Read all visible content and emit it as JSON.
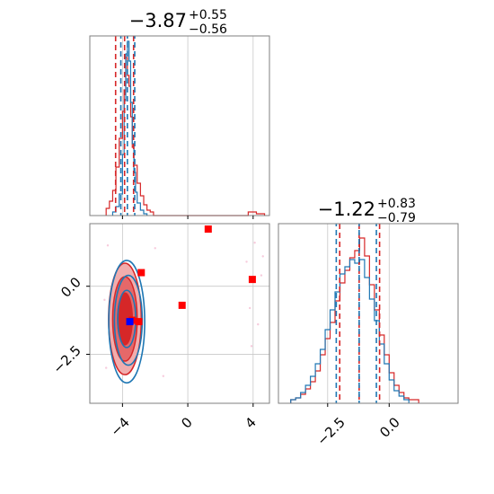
{
  "chart_data": {
    "type": "corner",
    "parameters": [
      "",
      ""
    ],
    "colors": {
      "posterior_a": "#d62728",
      "posterior_b": "#1f77b4",
      "grid": "#c8c8c8",
      "frame": "#7f7f7f",
      "marker_red": "#ff0000",
      "marker_blue": "#0000ff"
    },
    "panels": [
      {
        "id": "hist_p1",
        "type": "histogram",
        "title": {
          "main": "−3.87",
          "sup": "+0.55",
          "sub": "−0.56"
        },
        "xlim": [
          -6.0,
          5.0
        ],
        "ylim": [
          0,
          1
        ],
        "grid_x": [
          -4,
          0,
          4
        ],
        "quantile_lines": {
          "red": [
            -4.42,
            -3.87,
            -3.32
          ],
          "blue": [
            -4.1,
            -3.7,
            -3.25
          ]
        },
        "series": [
          {
            "name": "",
            "color": "#d62728",
            "bins": [
              {
                "x0": -5.0,
                "x1": -4.8,
                "h": 0.04
              },
              {
                "x0": -4.8,
                "x1": -4.6,
                "h": 0.08
              },
              {
                "x0": -4.6,
                "x1": -4.4,
                "h": 0.14
              },
              {
                "x0": -4.4,
                "x1": -4.2,
                "h": 0.27
              },
              {
                "x0": -4.2,
                "x1": -4.0,
                "h": 0.43
              },
              {
                "x0": -4.0,
                "x1": -3.9,
                "h": 0.58
              },
              {
                "x0": -3.9,
                "x1": -3.8,
                "h": 0.7
              },
              {
                "x0": -3.8,
                "x1": -3.7,
                "h": 0.88
              },
              {
                "x0": -3.7,
                "x1": -3.6,
                "h": 0.78
              },
              {
                "x0": -3.6,
                "x1": -3.5,
                "h": 0.72
              },
              {
                "x0": -3.5,
                "x1": -3.4,
                "h": 0.55
              },
              {
                "x0": -3.4,
                "x1": -3.3,
                "h": 0.38
              },
              {
                "x0": -3.3,
                "x1": -3.1,
                "h": 0.28
              },
              {
                "x0": -3.1,
                "x1": -2.9,
                "h": 0.18
              },
              {
                "x0": -2.9,
                "x1": -2.7,
                "h": 0.11
              },
              {
                "x0": -2.7,
                "x1": -2.5,
                "h": 0.06
              },
              {
                "x0": -2.5,
                "x1": -2.3,
                "h": 0.03
              },
              {
                "x0": -2.3,
                "x1": -2.1,
                "h": 0.02
              },
              {
                "x0": 3.7,
                "x1": 4.2,
                "h": 0.02
              },
              {
                "x0": 4.2,
                "x1": 4.7,
                "h": 0.01
              }
            ]
          },
          {
            "name": "",
            "color": "#1f77b4",
            "bins": [
              {
                "x0": -4.6,
                "x1": -4.4,
                "h": 0.02
              },
              {
                "x0": -4.4,
                "x1": -4.2,
                "h": 0.05
              },
              {
                "x0": -4.2,
                "x1": -4.0,
                "h": 0.12
              },
              {
                "x0": -4.0,
                "x1": -3.9,
                "h": 0.34
              },
              {
                "x0": -3.9,
                "x1": -3.8,
                "h": 0.64
              },
              {
                "x0": -3.8,
                "x1": -3.7,
                "h": 0.9
              },
              {
                "x0": -3.7,
                "x1": -3.6,
                "h": 0.97
              },
              {
                "x0": -3.6,
                "x1": -3.5,
                "h": 0.86
              },
              {
                "x0": -3.5,
                "x1": -3.4,
                "h": 0.63
              },
              {
                "x0": -3.4,
                "x1": -3.3,
                "h": 0.4
              },
              {
                "x0": -3.3,
                "x1": -3.2,
                "h": 0.24
              },
              {
                "x0": -3.2,
                "x1": -3.1,
                "h": 0.13
              },
              {
                "x0": -3.1,
                "x1": -2.9,
                "h": 0.07
              },
              {
                "x0": -2.9,
                "x1": -2.7,
                "h": 0.03
              },
              {
                "x0": -2.7,
                "x1": -2.5,
                "h": 0.01
              }
            ]
          }
        ]
      },
      {
        "id": "hist_p2",
        "type": "histogram",
        "title": {
          "main": "−1.22",
          "sup": "+0.83",
          "sub": "−0.79"
        },
        "xlim": [
          -4.5,
          2.8
        ],
        "ylim": [
          0,
          1
        ],
        "grid_x": [
          -2.5,
          0.0
        ],
        "xticks": [
          "−2.5",
          "0.0"
        ],
        "quantile_lines": {
          "red": [
            -2.01,
            -1.22,
            -0.39
          ],
          "blue": [
            -2.15,
            -1.22,
            -0.52
          ]
        },
        "series": [
          {
            "name": "",
            "color": "#d62728",
            "bins": [
              {
                "x0": -4.0,
                "x1": -3.8,
                "h": 0.02
              },
              {
                "x0": -3.8,
                "x1": -3.6,
                "h": 0.03
              },
              {
                "x0": -3.6,
                "x1": -3.4,
                "h": 0.05
              },
              {
                "x0": -3.4,
                "x1": -3.2,
                "h": 0.08
              },
              {
                "x0": -3.2,
                "x1": -3.0,
                "h": 0.12
              },
              {
                "x0": -3.0,
                "x1": -2.8,
                "h": 0.18
              },
              {
                "x0": -2.8,
                "x1": -2.6,
                "h": 0.27
              },
              {
                "x0": -2.6,
                "x1": -2.4,
                "h": 0.36
              },
              {
                "x0": -2.4,
                "x1": -2.2,
                "h": 0.45
              },
              {
                "x0": -2.2,
                "x1": -2.0,
                "h": 0.57
              },
              {
                "x0": -2.0,
                "x1": -1.8,
                "h": 0.67
              },
              {
                "x0": -1.8,
                "x1": -1.6,
                "h": 0.74
              },
              {
                "x0": -1.6,
                "x1": -1.4,
                "h": 0.81
              },
              {
                "x0": -1.4,
                "x1": -1.2,
                "h": 0.85
              },
              {
                "x0": -1.2,
                "x1": -1.0,
                "h": 0.92
              },
              {
                "x0": -1.0,
                "x1": -0.8,
                "h": 0.82
              },
              {
                "x0": -0.8,
                "x1": -0.6,
                "h": 0.66
              },
              {
                "x0": -0.6,
                "x1": -0.4,
                "h": 0.52
              },
              {
                "x0": -0.4,
                "x1": -0.2,
                "h": 0.38
              },
              {
                "x0": -0.2,
                "x1": 0.0,
                "h": 0.27
              },
              {
                "x0": 0.0,
                "x1": 0.2,
                "h": 0.17
              },
              {
                "x0": 0.2,
                "x1": 0.4,
                "h": 0.1
              },
              {
                "x0": 0.4,
                "x1": 0.6,
                "h": 0.06
              },
              {
                "x0": 0.6,
                "x1": 0.8,
                "h": 0.03
              },
              {
                "x0": 0.8,
                "x1": 1.2,
                "h": 0.02
              }
            ]
          },
          {
            "name": "",
            "color": "#1f77b4",
            "bins": [
              {
                "x0": -4.0,
                "x1": -3.8,
                "h": 0.02
              },
              {
                "x0": -3.8,
                "x1": -3.6,
                "h": 0.03
              },
              {
                "x0": -3.6,
                "x1": -3.4,
                "h": 0.06
              },
              {
                "x0": -3.4,
                "x1": -3.2,
                "h": 0.1
              },
              {
                "x0": -3.2,
                "x1": -3.0,
                "h": 0.15
              },
              {
                "x0": -3.0,
                "x1": -2.8,
                "h": 0.22
              },
              {
                "x0": -2.8,
                "x1": -2.6,
                "h": 0.3
              },
              {
                "x0": -2.6,
                "x1": -2.4,
                "h": 0.41
              },
              {
                "x0": -2.4,
                "x1": -2.2,
                "h": 0.52
              },
              {
                "x0": -2.2,
                "x1": -2.0,
                "h": 0.62
              },
              {
                "x0": -2.0,
                "x1": -1.8,
                "h": 0.72
              },
              {
                "x0": -1.8,
                "x1": -1.6,
                "h": 0.76
              },
              {
                "x0": -1.6,
                "x1": -1.4,
                "h": 0.8
              },
              {
                "x0": -1.4,
                "x1": -1.2,
                "h": 0.78
              },
              {
                "x0": -1.2,
                "x1": -1.0,
                "h": 0.8
              },
              {
                "x0": -1.0,
                "x1": -0.8,
                "h": 0.7
              },
              {
                "x0": -0.8,
                "x1": -0.6,
                "h": 0.58
              },
              {
                "x0": -0.6,
                "x1": -0.4,
                "h": 0.46
              },
              {
                "x0": -0.4,
                "x1": -0.2,
                "h": 0.33
              },
              {
                "x0": -0.2,
                "x1": 0.0,
                "h": 0.22
              },
              {
                "x0": 0.0,
                "x1": 0.2,
                "h": 0.13
              },
              {
                "x0": 0.2,
                "x1": 0.4,
                "h": 0.07
              },
              {
                "x0": 0.4,
                "x1": 0.6,
                "h": 0.04
              },
              {
                "x0": 0.6,
                "x1": 0.8,
                "h": 0.02
              }
            ]
          }
        ]
      },
      {
        "id": "joint_p1_p2",
        "type": "scatter+contour",
        "xlim": [
          -6.0,
          5.0
        ],
        "ylim": [
          -4.3,
          2.3
        ],
        "grid_x": [
          -4,
          0,
          4
        ],
        "grid_y": [
          -2.5,
          0.0
        ],
        "xticks": [
          "−4",
          "0",
          "4"
        ],
        "yticks": [
          "−2.5",
          "0.0"
        ],
        "contours": [
          {
            "color": "#d62728",
            "cx": -3.85,
            "cy": -1.2,
            "levels": [
              [
                0.45,
                0.95,
                "#d62728"
              ],
              [
                0.75,
                1.55,
                "#e56869"
              ],
              [
                1.0,
                2.05,
                "#f1adad"
              ]
            ]
          },
          {
            "color": "#1f77b4",
            "cx": -3.7,
            "cy": -1.2,
            "levels": [
              [
                0.55,
                1.05
              ],
              [
                0.85,
                1.65
              ],
              [
                1.1,
                2.25
              ]
            ]
          }
        ],
        "square_markers_red": [
          {
            "x": 1.25,
            "y": 2.1
          },
          {
            "x": -2.85,
            "y": 0.5
          },
          {
            "x": -0.35,
            "y": -0.7
          },
          {
            "x": 3.95,
            "y": 0.25
          },
          {
            "x": -3.0,
            "y": -1.3
          },
          {
            "x": -3.4,
            "y": -1.25
          }
        ],
        "square_markers_blue": [
          {
            "x": -3.55,
            "y": -1.3
          }
        ],
        "scatter_outliers": [
          {
            "x": 4.1,
            "y": 1.6
          },
          {
            "x": 4.5,
            "y": 0.4
          },
          {
            "x": 3.8,
            "y": -0.8
          },
          {
            "x": 4.3,
            "y": -1.4
          },
          {
            "x": 3.6,
            "y": 0.9
          },
          {
            "x": -4.9,
            "y": 1.5
          },
          {
            "x": -5.1,
            "y": -0.5
          },
          {
            "x": -2.0,
            "y": 1.4
          },
          {
            "x": -1.5,
            "y": -3.3
          },
          {
            "x": -5.0,
            "y": -3.0
          },
          {
            "x": 4.6,
            "y": 1.1
          },
          {
            "x": 3.9,
            "y": -2.2
          }
        ]
      }
    ]
  }
}
